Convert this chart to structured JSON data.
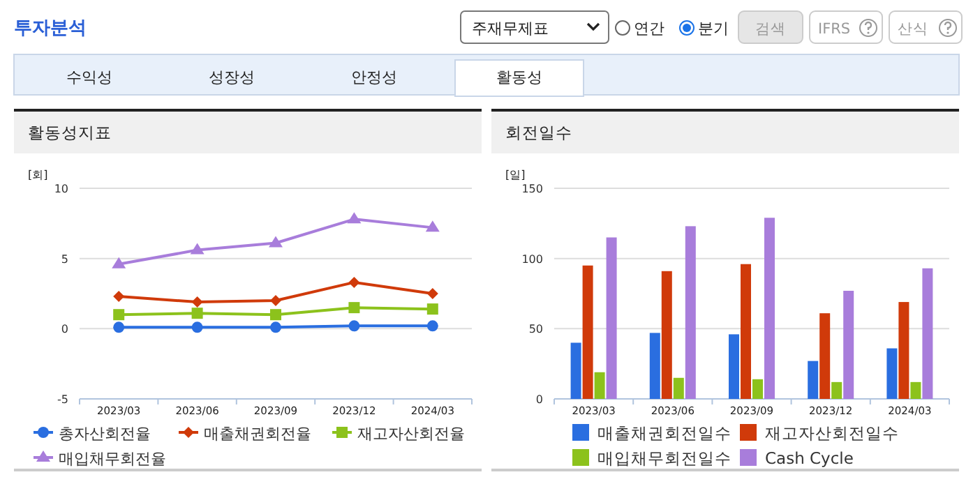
{
  "chart_data": [
    {
      "type": "other",
      "title": "투자분석",
      "annotations": [
        "주재무제표",
        "연간",
        "분기",
        "검색",
        "IFRS",
        "산식",
        "수익성",
        "성장성",
        "안정성",
        "활동성"
      ]
    },
    {
      "type": "line",
      "title": "활동성지표",
      "ylabel": "[회]",
      "categories": [
        "2023/03",
        "2023/06",
        "2023/09",
        "2023/12",
        "2024/03"
      ],
      "ylim": [
        -5,
        10
      ],
      "yticks": [
        -5,
        0,
        5,
        10
      ],
      "grid": "y",
      "legend": "bottom",
      "series": [
        {
          "name": "총자산회전율",
          "color": "#2a6ee0",
          "marker": "circle",
          "values": [
            0.1,
            0.1,
            0.1,
            0.2,
            0.2
          ]
        },
        {
          "name": "매출채권회전율",
          "color": "#d03a0a",
          "marker": "diamond",
          "values": [
            2.3,
            1.9,
            2.0,
            3.3,
            2.5
          ]
        },
        {
          "name": "재고자산회전율",
          "color": "#8cc21c",
          "marker": "square",
          "values": [
            1.0,
            1.1,
            1.0,
            1.5,
            1.4
          ]
        },
        {
          "name": "매입채무회전율",
          "color": "#a87ddb",
          "marker": "triangle",
          "values": [
            4.6,
            5.6,
            6.1,
            7.8,
            7.2
          ]
        }
      ]
    },
    {
      "type": "bar",
      "title": "회전일수",
      "ylabel": "[일]",
      "categories": [
        "2023/03",
        "2023/06",
        "2023/09",
        "2023/12",
        "2024/03"
      ],
      "ylim": [
        0,
        150
      ],
      "yticks": [
        0,
        50,
        100,
        150
      ],
      "grid": "y",
      "legend": "bottom",
      "series": [
        {
          "name": "매출채권회전일수",
          "color": "#2a6ee0",
          "values": [
            40,
            47,
            46,
            27,
            36
          ]
        },
        {
          "name": "재고자산회전일수",
          "color": "#d03a0a",
          "values": [
            95,
            91,
            96,
            61,
            69
          ]
        },
        {
          "name": "매입채무회전일수",
          "color": "#8cc21c",
          "values": [
            19,
            15,
            14,
            12,
            12
          ]
        },
        {
          "name": "Cash Cycle",
          "color": "#a87ddb",
          "values": [
            115,
            123,
            129,
            77,
            93
          ]
        }
      ]
    }
  ]
}
